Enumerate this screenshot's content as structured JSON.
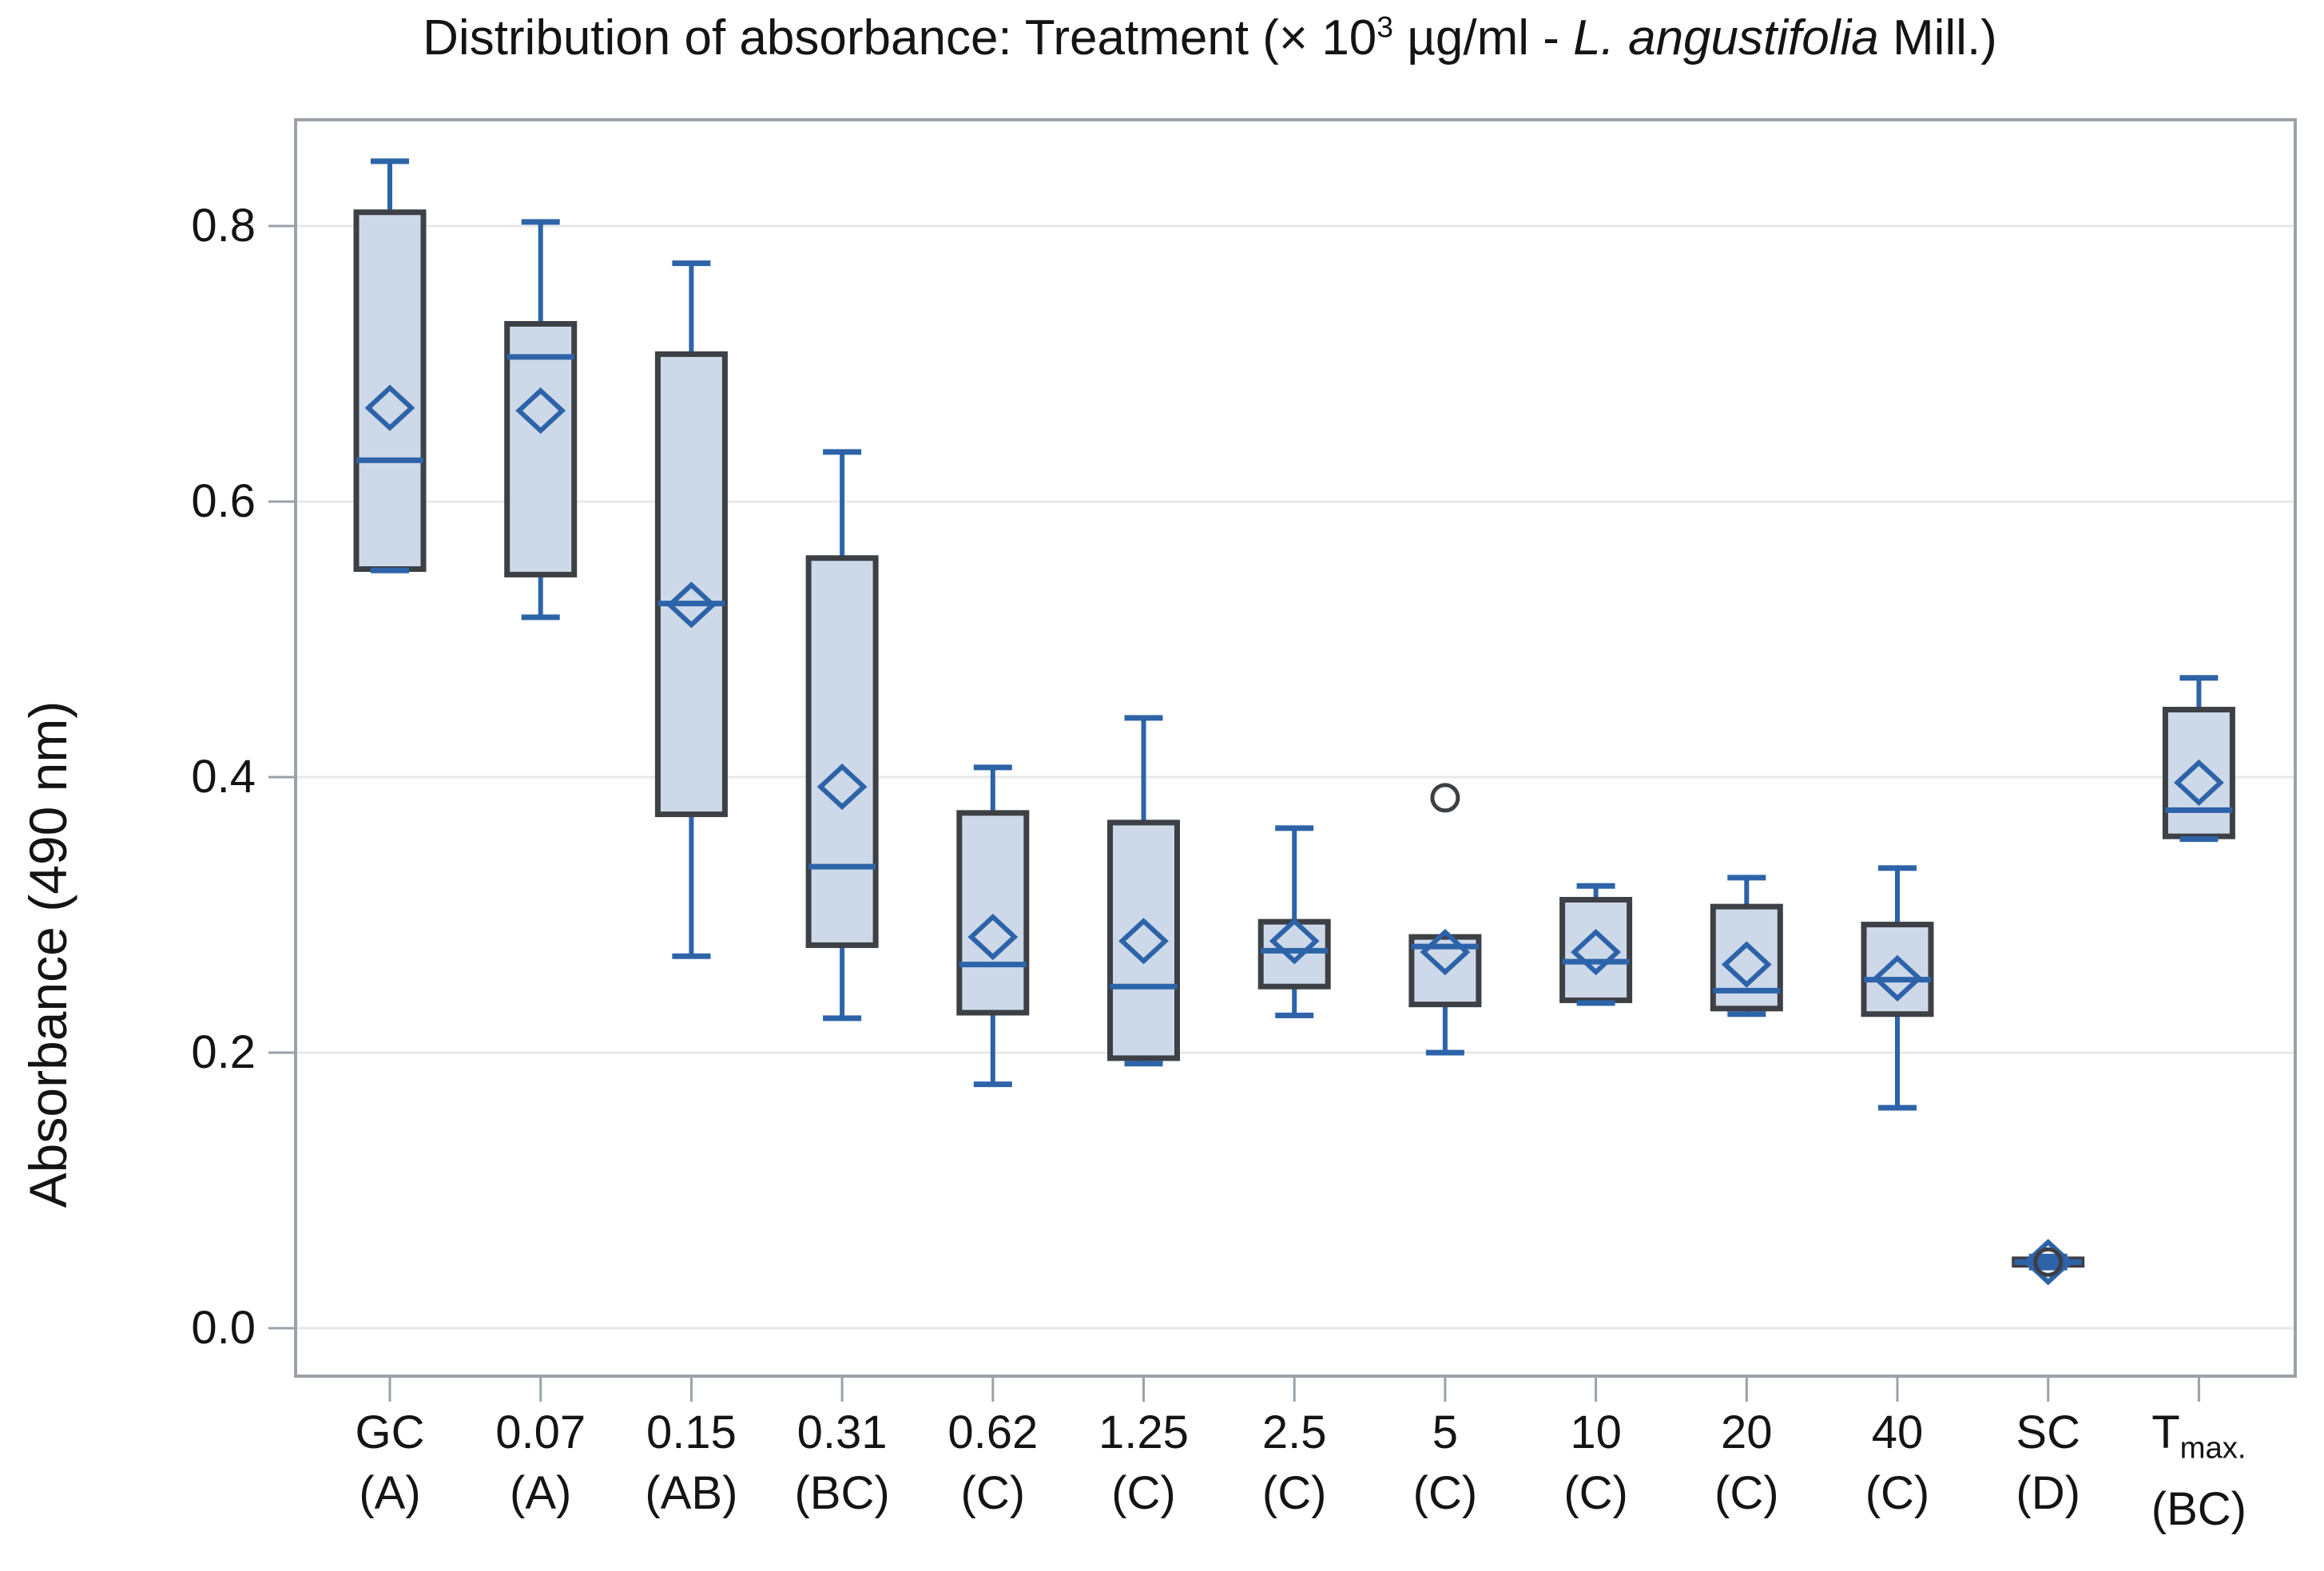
{
  "title": {
    "prefix": "Distribution of absorbance: Treatment (× 10",
    "exponent": "3",
    "mid": " µg/ml - ",
    "species": "L. angustifolia",
    "suffix": " Mill.)"
  },
  "y_axis": {
    "label": "Absorbance (490 nm)",
    "ticks": [
      "0.0",
      "0.2",
      "0.4",
      "0.6",
      "0.8"
    ],
    "tick_values": [
      0.0,
      0.2,
      0.4,
      0.6,
      0.8
    ]
  },
  "x_axis": {
    "categories": [
      {
        "label": "GC",
        "group": "(A)"
      },
      {
        "label": "0.07",
        "group": "(A)"
      },
      {
        "label": "0.15",
        "group": "(AB)"
      },
      {
        "label": "0.31",
        "group": "(BC)"
      },
      {
        "label": "0.62",
        "group": "(C)"
      },
      {
        "label": "1.25",
        "group": "(C)"
      },
      {
        "label": "2.5",
        "group": "(C)"
      },
      {
        "label": "5",
        "group": "(C)"
      },
      {
        "label": "10",
        "group": "(C)"
      },
      {
        "label": "20",
        "group": "(C)"
      },
      {
        "label": "40",
        "group": "(C)"
      },
      {
        "label": "SC",
        "group": "(D)"
      },
      {
        "label": "T",
        "sub": "max.",
        "group": "(BC)"
      }
    ]
  },
  "chart_data": {
    "type": "boxplot",
    "title": "Distribution of absorbance: Treatment (× 10³ µg/ml - L. angustifolia Mill.)",
    "xlabel": "",
    "ylabel": "Absorbance (490 nm)",
    "ylim": [
      -0.04,
      0.88
    ],
    "grid": true,
    "mean_marker": "hollow-diamond",
    "categories": [
      "GC",
      "0.07",
      "0.15",
      "0.31",
      "0.62",
      "1.25",
      "2.5",
      "5",
      "10",
      "20",
      "40",
      "SC",
      "Tmax."
    ],
    "group_letters": [
      "(A)",
      "(A)",
      "(AB)",
      "(BC)",
      "(C)",
      "(C)",
      "(C)",
      "(C)",
      "(C)",
      "(C)",
      "(C)",
      "(D)",
      "(BC)"
    ],
    "series": [
      {
        "category": "GC",
        "group": "(A)",
        "whisker_low": 0.55,
        "q1": 0.551,
        "median": 0.63,
        "q3": 0.81,
        "whisker_high": 0.847,
        "mean": 0.668,
        "outliers": []
      },
      {
        "category": "0.07",
        "group": "(A)",
        "whisker_low": 0.516,
        "q1": 0.547,
        "median": 0.705,
        "q3": 0.729,
        "whisker_high": 0.803,
        "mean": 0.666,
        "outliers": []
      },
      {
        "category": "0.15",
        "group": "(AB)",
        "whisker_low": 0.27,
        "q1": 0.373,
        "median": 0.526,
        "q3": 0.707,
        "whisker_high": 0.773,
        "mean": 0.525,
        "outliers": []
      },
      {
        "category": "0.31",
        "group": "(BC)",
        "whisker_low": 0.225,
        "q1": 0.278,
        "median": 0.335,
        "q3": 0.559,
        "whisker_high": 0.636,
        "mean": 0.393,
        "outliers": []
      },
      {
        "category": "0.62",
        "group": "(C)",
        "whisker_low": 0.177,
        "q1": 0.229,
        "median": 0.264,
        "q3": 0.374,
        "whisker_high": 0.407,
        "mean": 0.284,
        "outliers": []
      },
      {
        "category": "1.25",
        "group": "(C)",
        "whisker_low": 0.192,
        "q1": 0.196,
        "median": 0.248,
        "q3": 0.367,
        "whisker_high": 0.443,
        "mean": 0.281,
        "outliers": []
      },
      {
        "category": "2.5",
        "group": "(C)",
        "whisker_low": 0.227,
        "q1": 0.248,
        "median": 0.274,
        "q3": 0.295,
        "whisker_high": 0.363,
        "mean": 0.281,
        "outliers": []
      },
      {
        "category": "5",
        "group": "(C)",
        "whisker_low": 0.2,
        "q1": 0.235,
        "median": 0.277,
        "q3": 0.284,
        "whisker_high": 0.284,
        "mean": 0.273,
        "outliers": [
          0.385
        ]
      },
      {
        "category": "10",
        "group": "(C)",
        "whisker_low": 0.236,
        "q1": 0.238,
        "median": 0.266,
        "q3": 0.311,
        "whisker_high": 0.321,
        "mean": 0.273,
        "outliers": []
      },
      {
        "category": "20",
        "group": "(C)",
        "whisker_low": 0.228,
        "q1": 0.232,
        "median": 0.245,
        "q3": 0.306,
        "whisker_high": 0.327,
        "mean": 0.264,
        "outliers": []
      },
      {
        "category": "40",
        "group": "(C)",
        "whisker_low": 0.16,
        "q1": 0.228,
        "median": 0.253,
        "q3": 0.293,
        "whisker_high": 0.334,
        "mean": 0.254,
        "outliers": []
      },
      {
        "category": "SC",
        "group": "(D)",
        "whisker_low": 0.044,
        "q1": 0.046,
        "median": 0.048,
        "q3": 0.05,
        "whisker_high": 0.052,
        "mean": 0.048,
        "outliers": [
          0.048
        ]
      },
      {
        "category": "Tmax.",
        "group": "(BC)",
        "whisker_low": 0.355,
        "q1": 0.357,
        "median": 0.376,
        "q3": 0.449,
        "whisker_high": 0.472,
        "mean": 0.396,
        "outliers": []
      }
    ]
  },
  "colors": {
    "box_fill": "#cdd9e8",
    "box_border": "#3d4045",
    "blue": "#2d63a8",
    "frame": "#9aa2a9",
    "grid": "#e8e8e8",
    "outlier": "#3c3f44",
    "text": "#141414",
    "background": "#ffffff"
  }
}
